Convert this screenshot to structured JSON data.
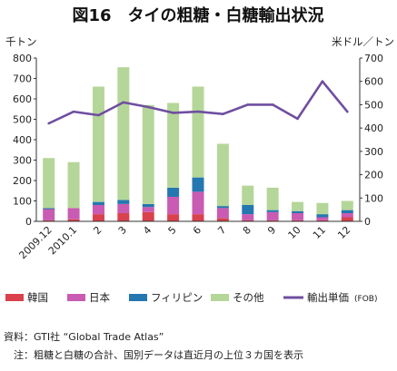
{
  "chart_data": {
    "type": "bar",
    "title": "図16　タイの粗糖・白糖輸出状況",
    "left_axis_unit": "千トン",
    "right_axis_unit": "米ドル／トン",
    "categories": [
      "2009.12",
      "2010.1",
      "2",
      "3",
      "4",
      "5",
      "6",
      "7",
      "8",
      "9",
      "10",
      "11",
      "12"
    ],
    "ylim_left": [
      0,
      800
    ],
    "ylim_right": [
      0,
      700
    ],
    "yticks_left": [
      "0",
      "100",
      "200",
      "300",
      "400",
      "500",
      "600",
      "700",
      "800"
    ],
    "yticks_right": [
      "0",
      "100",
      "200",
      "300",
      "400",
      "500",
      "600",
      "700"
    ],
    "stacked_series": [
      {
        "name": "韓国",
        "color": "#d9424c",
        "values": [
          5,
          10,
          35,
          40,
          45,
          35,
          35,
          15,
          5,
          5,
          5,
          5,
          20
        ]
      },
      {
        "name": "日本",
        "color": "#c95bb2",
        "values": [
          55,
          55,
          45,
          45,
          25,
          85,
          110,
          50,
          30,
          40,
          35,
          15,
          20
        ]
      },
      {
        "name": "フィリピン",
        "color": "#2577b0",
        "values": [
          5,
          0,
          15,
          20,
          15,
          45,
          70,
          10,
          45,
          10,
          10,
          15,
          15
        ]
      },
      {
        "name": "その他",
        "color": "#b5d699",
        "values": [
          245,
          225,
          565,
          650,
          485,
          415,
          445,
          305,
          95,
          110,
          45,
          55,
          45
        ]
      }
    ],
    "line_series": {
      "name": "輸出単価",
      "name_suffix": "(FOB)",
      "color": "#6f4fa0",
      "values": [
        420,
        470,
        455,
        510,
        490,
        465,
        470,
        460,
        500,
        500,
        440,
        600,
        470
      ]
    },
    "legend_position": "bottom"
  },
  "footer": {
    "source": "資料：GTI社 “Global Trade Atlas”",
    "note": "　注：粗糖と白糖の合計、国別データは直近月の上位３カ国を表示"
  }
}
